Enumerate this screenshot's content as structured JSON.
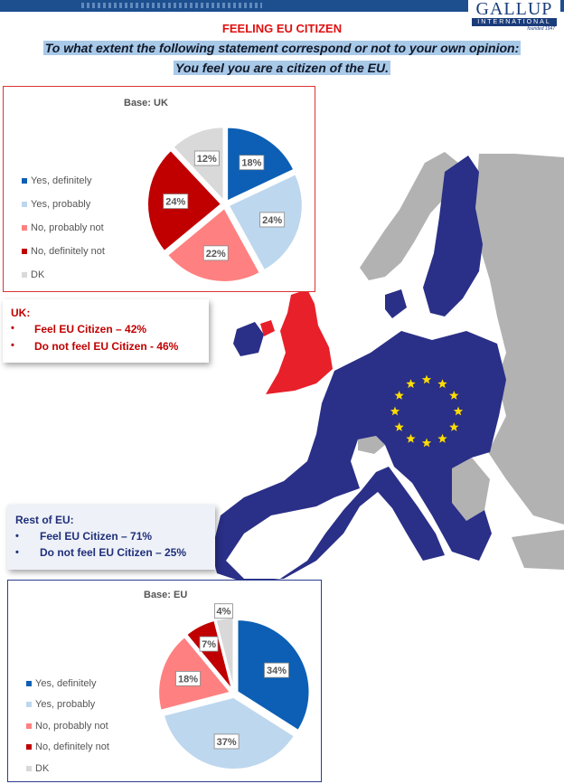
{
  "header": {
    "title": "FEELING EU CITIZEN",
    "question_line1": "To what extent the following statement correspond or not to your own opinion:",
    "question_line2": "You feel you are a citizen of the EU."
  },
  "logo": {
    "word": "GALLUP",
    "intl": "INTERNATIONAL",
    "founded": "founded 1947"
  },
  "colors": {
    "yes_definitely": "#0c5fb4",
    "yes_probably": "#bdd7ee",
    "no_probably_not": "#ff8080",
    "no_definitely_not": "#c00000",
    "dk": "#d9d9d9",
    "eu_blue": "#2a2f87",
    "uk_red": "#e8202a",
    "non_eu_grey": "#b2b2b2"
  },
  "uk_callout": {
    "heading": "UK:",
    "items": [
      "Feel EU Citizen – 42%",
      "Do not feel EU Citizen - 46%"
    ]
  },
  "eu_callout": {
    "heading": "Rest of EU:",
    "items": [
      "Feel EU Citizen – 71%",
      "Do not feel EU Citizen – 25%"
    ]
  },
  "chart_data": [
    {
      "type": "pie",
      "title": "Base: UK",
      "legend_position": "left",
      "categories": [
        "Yes, definitely",
        "Yes, probably",
        "No, probably not",
        "No, definitely not",
        "DK"
      ],
      "values": [
        18,
        24,
        22,
        24,
        12
      ],
      "labels": [
        "18%",
        "24%",
        "22%",
        "24%",
        "12%"
      ]
    },
    {
      "type": "pie",
      "title": "Base: EU",
      "legend_position": "left",
      "categories": [
        "Yes, definitely",
        "Yes, probably",
        "No, probably not",
        "No, definitely not",
        "DK"
      ],
      "values": [
        34,
        37,
        18,
        7,
        4
      ],
      "labels": [
        "34%",
        "37%",
        "18%",
        "7%",
        "4%"
      ]
    }
  ]
}
